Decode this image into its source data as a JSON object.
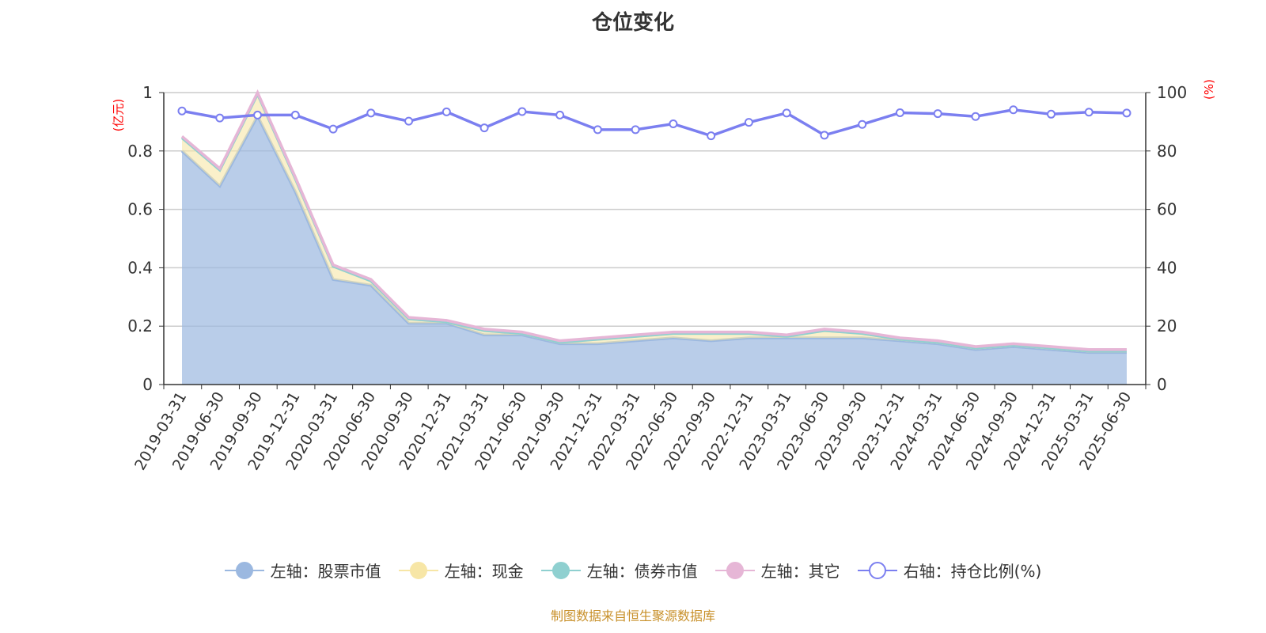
{
  "chart_data": {
    "type": "area",
    "title": "仓位变化",
    "ylabel_left": "(亿元)",
    "ylabel_right": "(%)",
    "ylim_left": [
      0,
      1
    ],
    "ylim_right": [
      0,
      100
    ],
    "yticks_left": [
      "0",
      "0.2",
      "0.4",
      "0.6",
      "0.8",
      "1"
    ],
    "yticks_right": [
      "0",
      "20",
      "40",
      "60",
      "80",
      "100"
    ],
    "grid": true,
    "legend_placement": "bottom",
    "categories": [
      "2019-03-31",
      "2019-06-30",
      "2019-09-30",
      "2019-12-31",
      "2020-03-31",
      "2020-06-30",
      "2020-09-30",
      "2020-12-31",
      "2021-03-31",
      "2021-06-30",
      "2021-09-30",
      "2021-12-31",
      "2022-03-31",
      "2022-06-30",
      "2022-09-30",
      "2022-12-31",
      "2023-03-31",
      "2023-06-30",
      "2023-09-30",
      "2023-12-31",
      "2024-03-31",
      "2024-06-30",
      "2024-09-30",
      "2024-12-31",
      "2025-03-31",
      "2025-06-30"
    ],
    "series": [
      {
        "name": "左轴：股票市值",
        "axis": "left",
        "stacked": true,
        "color": "#9bb8e0",
        "values": [
          0.8,
          0.68,
          0.92,
          0.66,
          0.36,
          0.34,
          0.21,
          0.21,
          0.17,
          0.17,
          0.14,
          0.14,
          0.15,
          0.16,
          0.15,
          0.16,
          0.16,
          0.16,
          0.16,
          0.15,
          0.14,
          0.12,
          0.13,
          0.12,
          0.11,
          0.11
        ]
      },
      {
        "name": "左轴：现金",
        "axis": "left",
        "stacked": true,
        "color": "#f7e6a6",
        "values": [
          0.045,
          0.055,
          0.075,
          0.045,
          0.045,
          0.015,
          0.015,
          0.005,
          0.015,
          0.005,
          0.005,
          0.015,
          0.015,
          0.015,
          0.025,
          0.015,
          0.005,
          0.025,
          0.015,
          0.005,
          0.005,
          0.005,
          0.005,
          0.005,
          0.005,
          0.005
        ]
      },
      {
        "name": "左轴：债券市值",
        "axis": "left",
        "stacked": true,
        "color": "#8fd0d0",
        "values": [
          0,
          0,
          0,
          0,
          0,
          0,
          0,
          0,
          0,
          0,
          0,
          0,
          0,
          0,
          0,
          0,
          0,
          0,
          0,
          0,
          0,
          0,
          0,
          0,
          0,
          0
        ]
      },
      {
        "name": "左轴：其它",
        "axis": "left",
        "stacked": true,
        "color": "#e6b6d6",
        "values": [
          0.005,
          0.005,
          0.005,
          0.005,
          0.005,
          0.005,
          0.005,
          0.005,
          0.005,
          0.005,
          0.005,
          0.005,
          0.005,
          0.005,
          0.005,
          0.005,
          0.005,
          0.005,
          0.005,
          0.005,
          0.005,
          0.005,
          0.005,
          0.005,
          0.005,
          0.005
        ]
      },
      {
        "name": "右轴：持仓比例(%)",
        "axis": "right",
        "color": "#7b7ff0",
        "values": [
          93.7,
          91.3,
          92.3,
          92.3,
          87.5,
          93.0,
          90.2,
          93.4,
          87.9,
          93.5,
          92.3,
          87.3,
          87.3,
          89.3,
          85.2,
          89.8,
          93.0,
          85.4,
          89.1,
          93.1,
          92.8,
          91.8,
          94.1,
          92.6,
          93.3,
          93.0
        ]
      }
    ]
  },
  "footer": "制图数据来自恒生聚源数据库"
}
